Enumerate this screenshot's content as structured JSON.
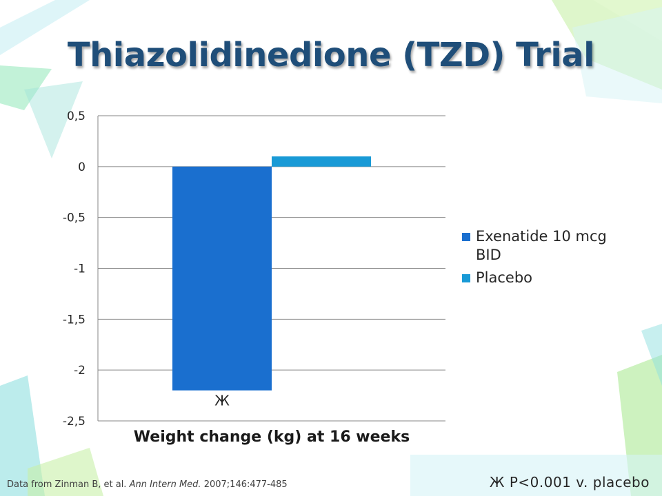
{
  "slide": {
    "title": "Thiazolidinedione (TZD) Trial",
    "footnote": {
      "prefix": "Data from Zinman B, et al. ",
      "journal": "Ann Intern Med.",
      "suffix": " 2007;146:477-485"
    },
    "pvalue_note": "Ж P<0.001 v. placebo",
    "colors": {
      "title": "#1f4e79",
      "decor_green": "#b7eb8f",
      "decor_teal": "#8fdfe0",
      "decor_cyan": "#d6f3f6"
    }
  },
  "chart_data": {
    "type": "bar",
    "categories": [
      "Weight change (kg) at 16 weeks"
    ],
    "series": [
      {
        "name": "Exenatide 10 mcg BID",
        "values": [
          -2.2
        ],
        "color": "#1a6fcf",
        "annotation": "Ж"
      },
      {
        "name": "Placebo",
        "values": [
          0.1
        ],
        "color": "#199ad6"
      }
    ],
    "ylim": [
      -2.5,
      0.5
    ],
    "yticks": [
      "0,5",
      "0",
      "-0,5",
      "-1",
      "-1,5",
      "-2",
      "-2,5"
    ],
    "ytick_values": [
      0.5,
      0,
      -0.5,
      -1,
      -1.5,
      -2,
      -2.5
    ],
    "xlabel": "Weight change (kg) at 16 weeks",
    "grid": true,
    "legend": "right"
  }
}
